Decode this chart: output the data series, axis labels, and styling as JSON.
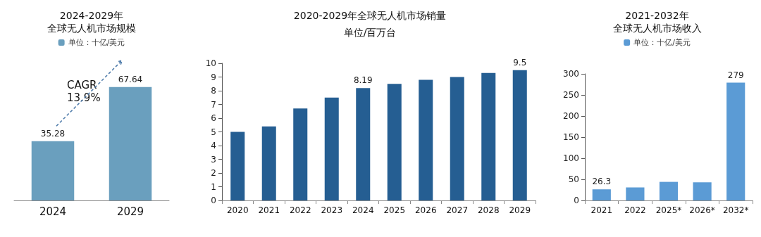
{
  "chart_data": [
    {
      "type": "bar",
      "title": "2024-2029年全球无人机市场规模",
      "categories": [
        "2024",
        "2029"
      ],
      "series": [
        {
          "name": "单位：十亿/美元",
          "color": "#6a9fbe",
          "values": [
            35.28,
            67.64
          ]
        }
      ],
      "data_labels": true,
      "legend": "top",
      "annotations": [
        "CAGR\n13.9%"
      ],
      "tick_labels": "x"
    },
    {
      "type": "bar",
      "title": "2020-2029年全球无人机市场销量",
      "subtitle": "单位/百万台",
      "categories": [
        "2020",
        "2021",
        "2022",
        "2023",
        "2024",
        "2025",
        "2026",
        "2027",
        "2028",
        "2029"
      ],
      "series": [
        {
          "color": "#255e92",
          "values": [
            5.0,
            5.4,
            6.7,
            7.5,
            8.19,
            8.5,
            8.8,
            9.0,
            9.3,
            9.5
          ],
          "value_labels": [
            null,
            null,
            null,
            null,
            "8.19",
            null,
            null,
            null,
            null,
            "9.5"
          ]
        }
      ],
      "ylim": [
        0,
        10
      ],
      "yticks": [
        0,
        1,
        2,
        3,
        4,
        5,
        6,
        7,
        8,
        9,
        10
      ],
      "grid": false
    },
    {
      "type": "bar",
      "title": "2021-2032年全球无人机市场收入",
      "categories": [
        "2021",
        "2022",
        "2025*",
        "2026*",
        "2032*"
      ],
      "series": [
        {
          "name": "单位：十亿/美元",
          "color": "#5b9bd5",
          "values": [
            26.3,
            31,
            44,
            43,
            279
          ],
          "value_labels": [
            "26.3",
            null,
            null,
            null,
            "279"
          ]
        }
      ],
      "ylim": [
        0,
        300
      ],
      "yticks": [
        0,
        50,
        100,
        150,
        200,
        250,
        300
      ],
      "grid": false,
      "legend": "top"
    }
  ]
}
